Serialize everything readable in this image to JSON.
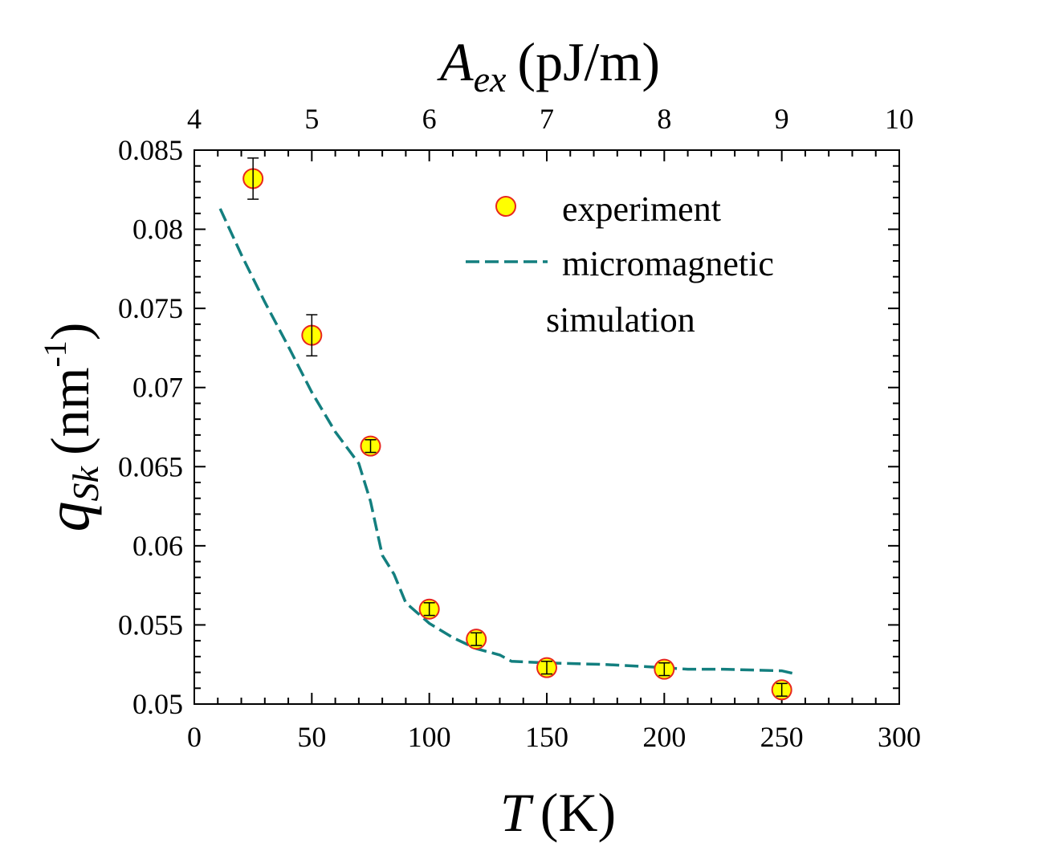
{
  "chart_data": {
    "type": "scatter",
    "bottom_axis": {
      "label_symbol": "T",
      "label_unit": "(K)",
      "range": [
        0,
        300
      ],
      "ticks": [
        "0",
        "50",
        "100",
        "150",
        "200",
        "250",
        "300"
      ]
    },
    "top_axis": {
      "label_symbol": "A",
      "label_subscript": "ex",
      "label_unit": "(pJ/m)",
      "ticks": [
        {
          "label": "4",
          "T": 0
        },
        {
          "label": "5",
          "T": 50
        },
        {
          "label": "6",
          "T": 100
        },
        {
          "label": "7",
          "T": 150
        },
        {
          "label": "8",
          "T": 200
        },
        {
          "label": "9",
          "T": 250
        },
        {
          "label": "10",
          "T": 300
        }
      ]
    },
    "left_axis": {
      "label_symbol": "q",
      "label_subscript": "Sk",
      "label_unit_main": "(nm",
      "label_unit_sup": "-1",
      "label_unit_close": ")",
      "range": [
        0.05,
        0.085
      ],
      "ticks": [
        {
          "label": "0.05",
          "value": 0.05
        },
        {
          "label": "0.055",
          "value": 0.055
        },
        {
          "label": "0.06",
          "value": 0.06
        },
        {
          "label": "0.065",
          "value": 0.065
        },
        {
          "label": "0.07",
          "value": 0.07
        },
        {
          "label": "0.075",
          "value": 0.075
        },
        {
          "label": "0.08",
          "value": 0.08
        },
        {
          "label": "0.085",
          "value": 0.085
        }
      ]
    },
    "series": [
      {
        "name": "experiment",
        "kind": "points",
        "marker_fill": "#ffff00",
        "marker_edge": "#e8261e",
        "points": [
          {
            "x": 25,
            "y": 0.0832,
            "err": 0.0013
          },
          {
            "x": 50,
            "y": 0.0733,
            "err": 0.0013
          },
          {
            "x": 75,
            "y": 0.0663,
            "err": 0.0004
          },
          {
            "x": 100,
            "y": 0.056,
            "err": 0.0004
          },
          {
            "x": 120,
            "y": 0.0541,
            "err": 0.0004
          },
          {
            "x": 150,
            "y": 0.0523,
            "err": 0.0004
          },
          {
            "x": 200,
            "y": 0.0522,
            "err": 0.0004
          },
          {
            "x": 250,
            "y": 0.0509,
            "err": 0.0004
          }
        ]
      },
      {
        "name_line1": "micromagnetic",
        "name_line2": "simulation",
        "kind": "dashed-line",
        "color": "#137f7f",
        "x": [
          11,
          20,
          30,
          40,
          50,
          60,
          70,
          75,
          80,
          85,
          90,
          100,
          110,
          120,
          130,
          135,
          150,
          175,
          200,
          210,
          225,
          250,
          256
        ],
        "y": [
          0.0813,
          0.0784,
          0.0754,
          0.0726,
          0.0697,
          0.0672,
          0.0652,
          0.0628,
          0.0594,
          0.0582,
          0.0564,
          0.0551,
          0.0542,
          0.0535,
          0.0531,
          0.0527,
          0.0526,
          0.0525,
          0.0523,
          0.0522,
          0.0522,
          0.0521,
          0.0519
        ]
      }
    ],
    "legend_position": "top-right",
    "grid": false
  }
}
